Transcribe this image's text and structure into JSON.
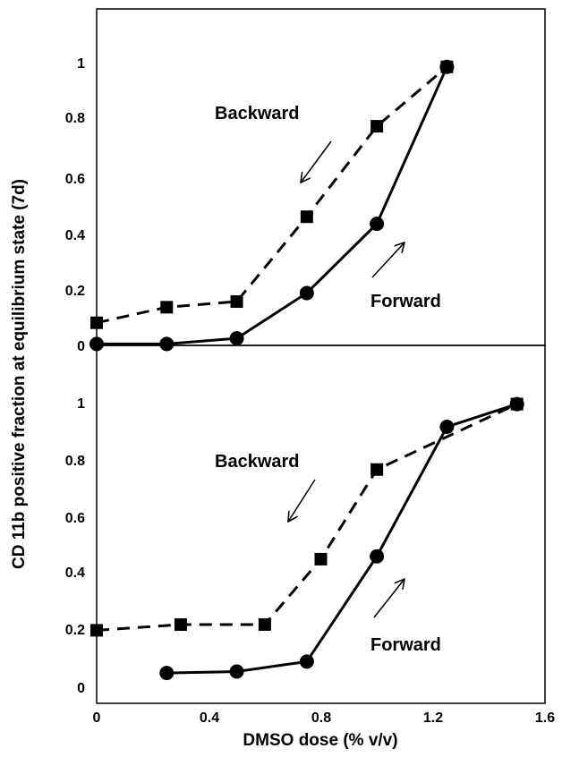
{
  "figure": {
    "ylabel": "CD 11b positive fraction at equilibrium state (7d)",
    "xlabel": "DMSO dose (% v/v)"
  },
  "chart_data": [
    {
      "type": "line",
      "xlim": [
        0,
        1.6
      ],
      "ylim": [
        0,
        1.1
      ],
      "yticks": [
        "0",
        "0.2",
        "0.4",
        "0.6",
        "0.8",
        "1"
      ],
      "grid": false,
      "series": [
        {
          "name": "Backward",
          "marker": "square",
          "line": "dashed",
          "x": [
            0,
            0.25,
            0.5,
            0.75,
            1.0,
            1.25
          ],
          "y": [
            0.08,
            0.135,
            0.155,
            0.455,
            0.775,
            0.985
          ]
        },
        {
          "name": "Forward",
          "marker": "circle",
          "line": "solid",
          "x": [
            0,
            0.25,
            0.5,
            0.75,
            1.0,
            1.25
          ],
          "y": [
            0.005,
            0.005,
            0.025,
            0.185,
            0.43,
            0.985
          ]
        }
      ],
      "annotations": [
        {
          "text": "Backward",
          "arrow": "down-left"
        },
        {
          "text": "Forward",
          "arrow": "up-right"
        }
      ]
    },
    {
      "type": "line",
      "xlim": [
        0,
        1.6
      ],
      "ylim": [
        0,
        1.1
      ],
      "xticks": [
        "0",
        "0.4",
        "0.8",
        "1.2",
        "1.6"
      ],
      "yticks": [
        "0",
        "0.2",
        "0.4",
        "0.6",
        "0.8",
        "1"
      ],
      "grid": false,
      "series": [
        {
          "name": "Backward",
          "marker": "square",
          "line": "dashed",
          "x": [
            0,
            0.3,
            0.6,
            0.8,
            1.0,
            1.5
          ],
          "y": [
            0.2,
            0.22,
            0.22,
            0.45,
            0.765,
            0.995
          ]
        },
        {
          "name": "Forward",
          "marker": "circle",
          "line": "solid",
          "x": [
            0.25,
            0.5,
            0.75,
            1.0,
            1.25,
            1.5
          ],
          "y": [
            0.05,
            0.055,
            0.09,
            0.46,
            0.915,
            0.995
          ]
        }
      ],
      "annotations": [
        {
          "text": "Backward",
          "arrow": "down-left"
        },
        {
          "text": "Forward",
          "arrow": "up-right"
        }
      ]
    }
  ]
}
